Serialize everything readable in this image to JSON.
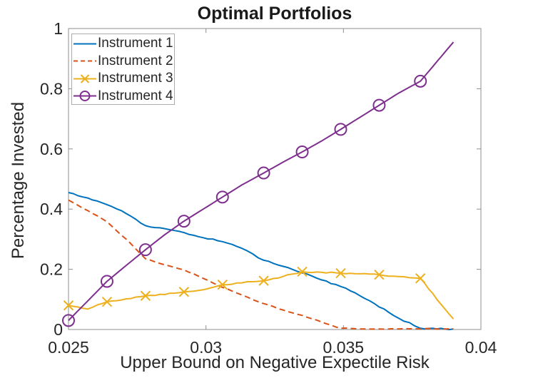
{
  "chart_data": {
    "type": "line",
    "title": "Optimal Portfolios",
    "xlabel": "Upper Bound on Negative Expectile Risk",
    "ylabel": "Percentage Invested",
    "xlim": [
      0.025,
      0.04
    ],
    "ylim": [
      0,
      1
    ],
    "x_ticks": [
      0.025,
      0.03,
      0.035,
      0.04
    ],
    "x_tick_labels": [
      "0.025",
      "0.03",
      "0.035",
      "0.04"
    ],
    "y_ticks": [
      0,
      0.2,
      0.4,
      0.6,
      0.8,
      1
    ],
    "y_tick_labels": [
      "0",
      "0.2",
      "0.4",
      "0.6",
      "0.8",
      "1"
    ],
    "grid": false,
    "legend_position": "top-left",
    "background": "#ffffff",
    "axis_color": "#8f8f8f",
    "text_color": "#262626",
    "x": [
      0.025,
      0.0257,
      0.0264,
      0.0271,
      0.0278,
      0.0285,
      0.0292,
      0.0299,
      0.0306,
      0.0313,
      0.0321,
      0.0328,
      0.0335,
      0.0342,
      0.0349,
      0.0356,
      0.0363,
      0.037,
      0.0378,
      0.0384,
      0.039
    ],
    "marker_x": [
      0.025,
      0.0264,
      0.0278,
      0.0292,
      0.0306,
      0.0321,
      0.0335,
      0.0349,
      0.0363,
      0.0378
    ],
    "series": [
      {
        "name": "Instrument 1",
        "color": "#0072BD",
        "line_style": "solid",
        "marker": "none",
        "wiggle": 1.1,
        "values": [
          0.455,
          0.437,
          0.415,
          0.385,
          0.345,
          0.335,
          0.322,
          0.305,
          0.292,
          0.27,
          0.23,
          0.21,
          0.188,
          0.165,
          0.143,
          0.112,
          0.075,
          0.038,
          0.004,
          0.002,
          0.002
        ]
      },
      {
        "name": "Instrument 2",
        "color": "#D95319",
        "line_style": "dashed",
        "marker": "none",
        "wiggle": 0.5,
        "values": [
          0.43,
          0.395,
          0.358,
          0.3,
          0.235,
          0.215,
          0.198,
          0.17,
          0.14,
          0.115,
          0.086,
          0.065,
          0.047,
          0.025,
          0.004,
          0.002,
          0.002,
          0.002,
          0.002,
          0.002,
          0.002
        ]
      },
      {
        "name": "Instrument 3",
        "color": "#EDB120",
        "line_style": "solid",
        "marker": "x",
        "wiggle": 1.0,
        "values": [
          0.08,
          0.068,
          0.092,
          0.102,
          0.112,
          0.116,
          0.125,
          0.132,
          0.149,
          0.155,
          0.162,
          0.176,
          0.192,
          0.19,
          0.187,
          0.185,
          0.182,
          0.176,
          0.17,
          0.1,
          0.035
        ]
      },
      {
        "name": "Instrument 4",
        "color": "#7E2F8E",
        "line_style": "solid",
        "marker": "circle",
        "wiggle": 0,
        "values": [
          0.03,
          0.095,
          0.16,
          0.213,
          0.265,
          0.315,
          0.36,
          0.4,
          0.44,
          0.48,
          0.52,
          0.556,
          0.59,
          0.626,
          0.665,
          0.705,
          0.745,
          0.785,
          0.825,
          0.89,
          0.955
        ]
      }
    ]
  }
}
